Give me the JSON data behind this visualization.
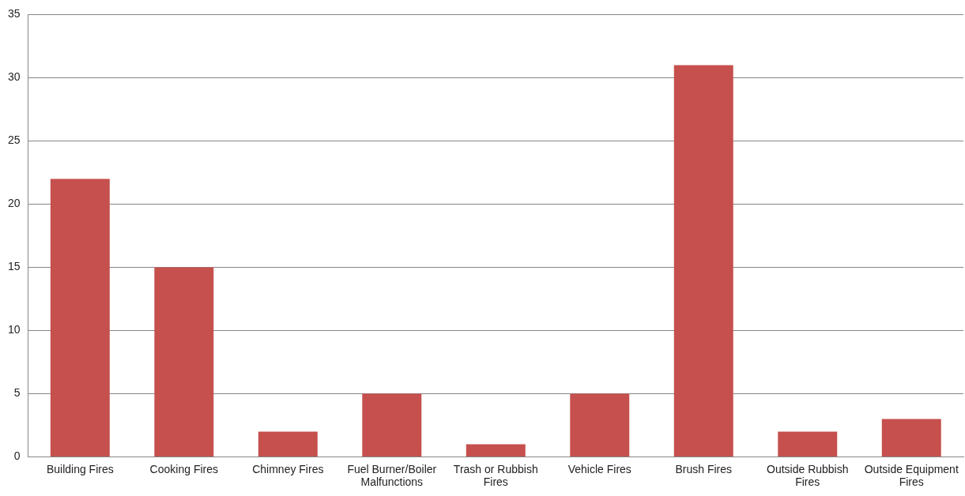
{
  "chart_data": {
    "type": "bar",
    "categories": [
      "Building Fires",
      "Cooking Fires",
      "Chimney Fires",
      "Fuel Burner/Boiler Malfunctions",
      "Trash or Rubbish Fires",
      "Vehicle Fires",
      "Brush Fires",
      "Outside Rubbish Fires",
      "Outside Equipment Fires"
    ],
    "values": [
      22,
      15,
      2,
      5,
      1,
      5,
      31,
      2,
      3
    ],
    "color": "#c5504d",
    "ylim": [
      0,
      35
    ],
    "yticks": [
      0,
      5,
      10,
      15,
      20,
      25,
      30,
      35
    ],
    "grid": "y",
    "legend": false
  }
}
